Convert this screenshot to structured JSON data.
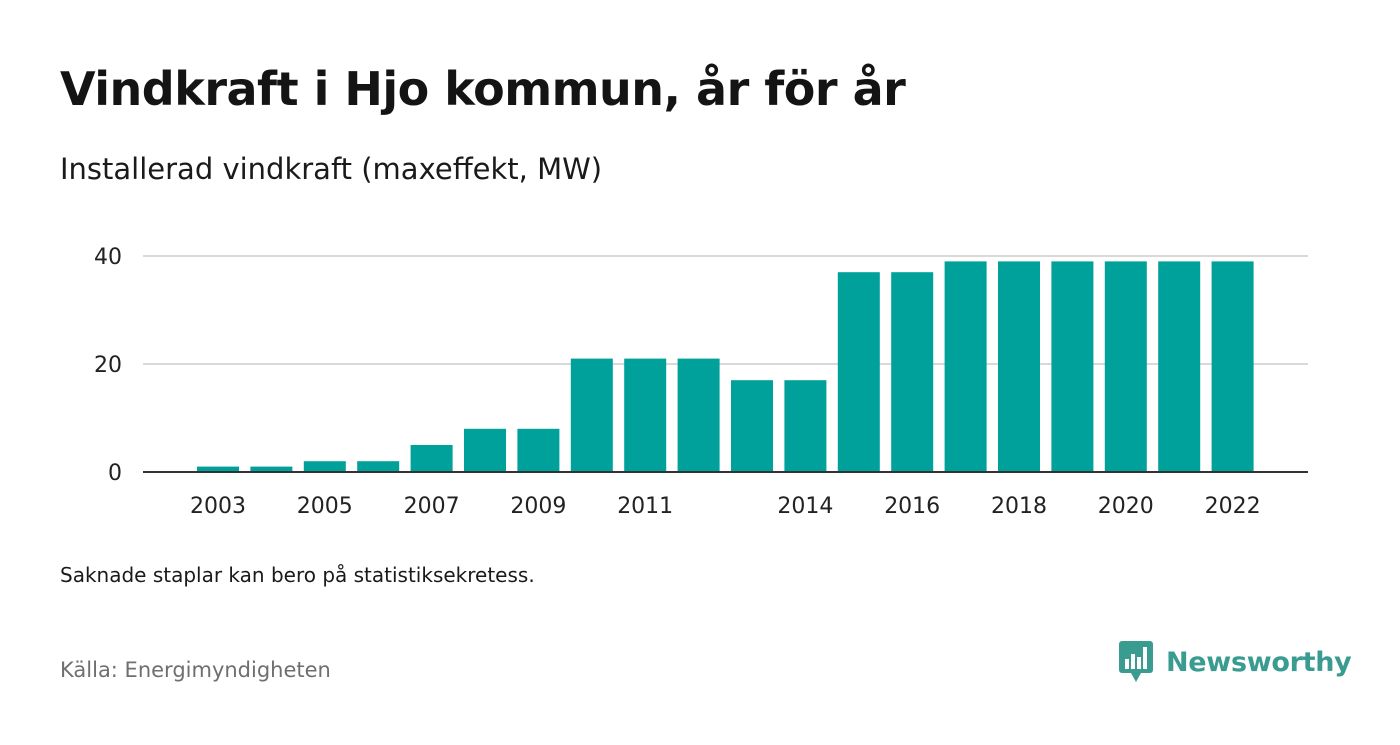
{
  "header": {
    "title": "Vindkraft i Hjo kommun, år för år",
    "subtitle": "Installerad vindkraft (maxeffekt, MW)"
  },
  "footer": {
    "note": "Saknade staplar kan bero på statistiksekretess.",
    "source": "Källa: Energimyndigheten",
    "brand": "Newsworthy"
  },
  "colors": {
    "bar": "#00a19a",
    "grid": "#d9d9d9",
    "axis": "#333333",
    "brand": "#3a9b91"
  },
  "chart_data": {
    "type": "bar",
    "categories": [
      "2003",
      "2004",
      "2005",
      "2006",
      "2007",
      "2008",
      "2009",
      "2010",
      "2011",
      "2012",
      "2013",
      "2014",
      "2015",
      "2016",
      "2017",
      "2018",
      "2019",
      "2020",
      "2021",
      "2022"
    ],
    "values": [
      1,
      1,
      2,
      2,
      5,
      8,
      8,
      21,
      21,
      21,
      17,
      17,
      37,
      37,
      39,
      39,
      39,
      39,
      39,
      39
    ],
    "x_tick_labels": [
      "2003",
      "2005",
      "2007",
      "2009",
      "2011",
      "2014",
      "2016",
      "2018",
      "2020",
      "2022"
    ],
    "y_ticks": [
      0,
      20,
      40
    ],
    "ylim": [
      0,
      40
    ],
    "xlabel": "",
    "ylabel": "",
    "grid": true
  }
}
